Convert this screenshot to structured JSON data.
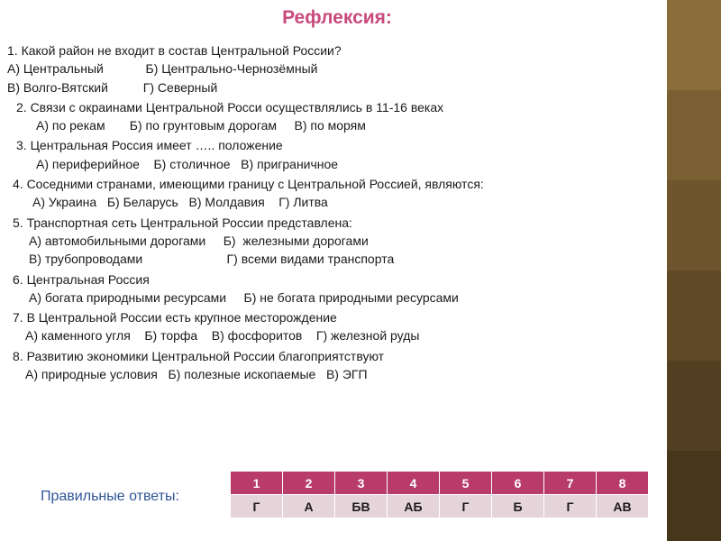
{
  "title": "Рефлексия:",
  "questions": {
    "q1": {
      "text": "1. Какой район не входит в состав Центральной России?",
      "row1": "А) Центральный            Б) Центрально-Чернозёмный",
      "row2": "В) Волго-Вятский          Г) Северный"
    },
    "q2": {
      "text": "2. Связи с окраинами Центральной Росси осуществлялись в 11-16 веках",
      "opts": "А) по рекам       Б) по грунтовым дорогам     В) по морям"
    },
    "q3": {
      "text": "3. Центральная Россия имеет ….. положение",
      "opts": "А) периферийное    Б) столичное   В) приграничное"
    },
    "q4": {
      "text": "4. Соседними странами, имеющими границу с Центральной Россией, являются:",
      "opts": "А) Украина   Б) Беларусь   В) Молдавия    Г) Литва"
    },
    "q5": {
      "text": "5. Транспортная сеть Центральной России представлена:",
      "row1": "А) автомобильными дорогами     Б)  железными дорогами",
      "row2": "В) трубопроводами                        Г) всеми видами транспорта"
    },
    "q6": {
      "text": "6. Центральная Россия",
      "opts": "А) богата природными ресурсами     Б) не богата природными ресурсами"
    },
    "q7": {
      "text": "7. В Центральной России есть крупное месторождение",
      "opts": "А) каменного угля    Б) торфа    В) фосфоритов    Г) железной руды"
    },
    "q8": {
      "text": "8. Развитию экономики Центральной России благоприятствуют",
      "opts": "А) природные условия   Б) полезные ископаемые   В) ЭГП"
    }
  },
  "answers_label": "Правильные ответы:",
  "answers": {
    "headers": [
      "1",
      "2",
      "3",
      "4",
      "5",
      "6",
      "7",
      "8"
    ],
    "values": [
      "Г",
      "А",
      "БВ",
      "АБ",
      "Г",
      "Б",
      "Г",
      "АВ"
    ]
  },
  "colors": {
    "title": "#c94a7c",
    "answers_label": "#2f5597",
    "table_header_bg": "#b83b6a",
    "table_value_bg": "#e6d4db"
  }
}
